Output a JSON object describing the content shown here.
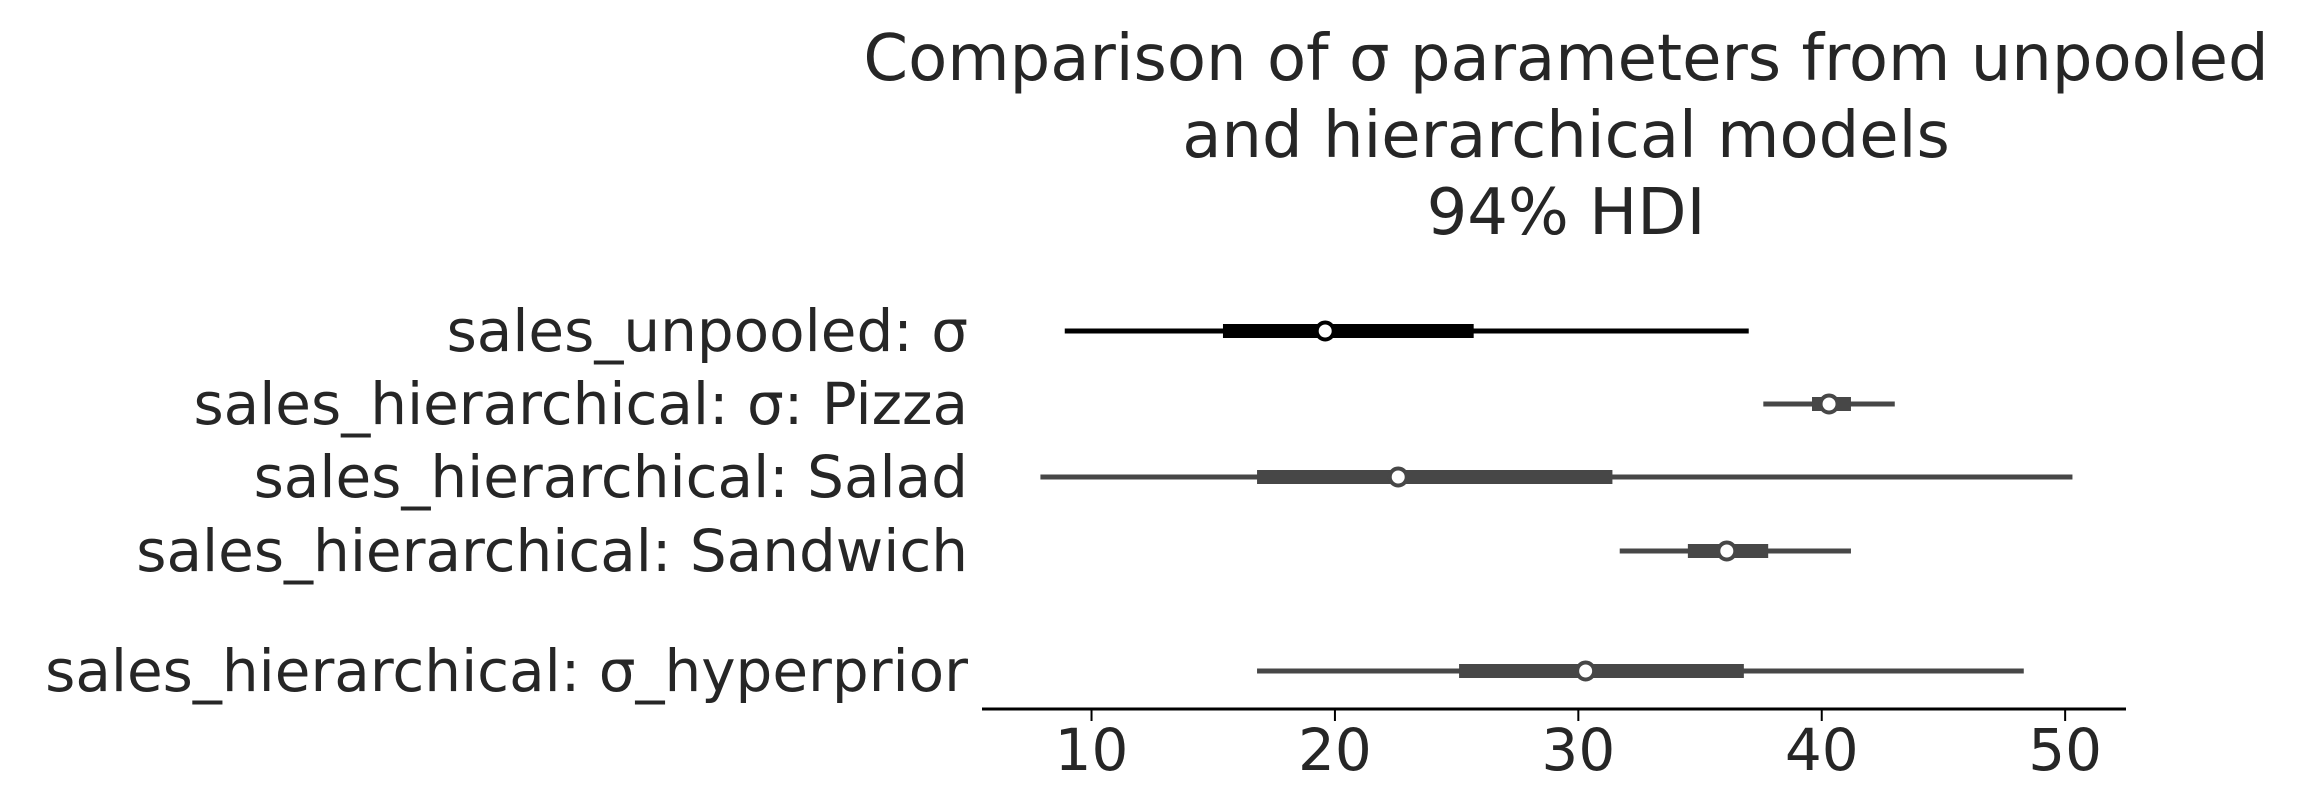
{
  "chart_data": {
    "type": "forest",
    "title": [
      "Comparison of σ parameters from unpooled",
      "and hierarchical models",
      "94% HDI"
    ],
    "xlabel": "",
    "ylabel": "",
    "xlim": [
      5.5,
      52.5
    ],
    "xticks": [
      10,
      20,
      30,
      40,
      50
    ],
    "xtick_labels": [
      "10",
      "20",
      "30",
      "40",
      "50"
    ],
    "grid": false,
    "colors": {
      "unpooled": "#000000",
      "hierarchical": "#474747",
      "text": "#262626"
    },
    "rows": [
      {
        "label": "sales_unpooled: σ",
        "model": "unpooled",
        "hdi94": [
          8.9,
          37.0
        ],
        "iqr": [
          15.4,
          25.7
        ],
        "median": 19.6
      },
      {
        "label": "sales_hierarchical: σ: Pizza",
        "model": "hierarchical",
        "hdi94": [
          37.6,
          43.0
        ],
        "iqr": [
          39.6,
          41.2
        ],
        "median": 40.3
      },
      {
        "label": "sales_hierarchical:  Salad",
        "model": "hierarchical",
        "hdi94": [
          7.9,
          50.3
        ],
        "iqr": [
          16.8,
          31.4
        ],
        "median": 22.6
      },
      {
        "label": "sales_hierarchical:  Sandwich",
        "model": "hierarchical",
        "hdi94": [
          31.7,
          41.2
        ],
        "iqr": [
          34.5,
          37.8
        ],
        "median": 36.1
      },
      {
        "label": "sales_hierarchical: σ_hyperprior",
        "model": "hierarchical",
        "hdi94": [
          16.8,
          48.3
        ],
        "iqr": [
          25.1,
          36.8
        ],
        "median": 30.3
      }
    ]
  }
}
